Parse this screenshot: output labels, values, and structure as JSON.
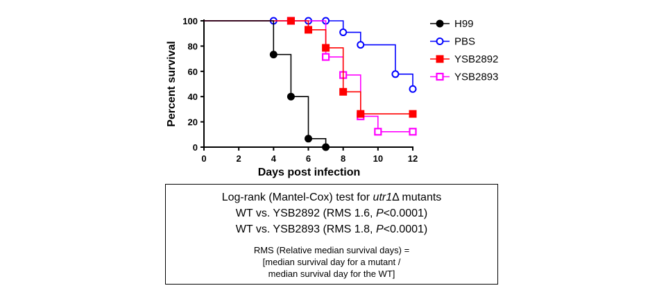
{
  "chart_data": {
    "type": "line",
    "subtype": "kaplan-meier survival (step)",
    "xlabel": "Days post infection",
    "ylabel": "Percent survival",
    "xlim": [
      0,
      12
    ],
    "ylim": [
      0,
      100
    ],
    "x_ticks": [
      "0",
      "2",
      "4",
      "6",
      "8",
      "10",
      "12"
    ],
    "y_ticks": [
      "0",
      "20",
      "40",
      "60",
      "80",
      "100"
    ],
    "grid": false,
    "legend_position": "right",
    "series": [
      {
        "name": "H99",
        "color": "#000000",
        "marker": "filled-circle",
        "points": [
          [
            0,
            100
          ],
          [
            4,
            100
          ],
          [
            4,
            73.3
          ],
          [
            5,
            73.3
          ],
          [
            5,
            40
          ],
          [
            6,
            40
          ],
          [
            6,
            6.7
          ],
          [
            7,
            6.7
          ],
          [
            7,
            0
          ]
        ],
        "markers": [
          [
            4,
            73.3
          ],
          [
            5,
            40
          ],
          [
            6,
            6.7
          ],
          [
            7,
            0
          ]
        ]
      },
      {
        "name": "PBS",
        "color": "#0000ff",
        "marker": "open-circle",
        "points": [
          [
            0,
            100
          ],
          [
            8,
            100
          ],
          [
            8,
            90.9
          ],
          [
            9,
            90.9
          ],
          [
            9,
            81
          ],
          [
            11,
            81
          ],
          [
            11,
            57.8
          ],
          [
            12,
            57.8
          ],
          [
            12,
            46
          ]
        ],
        "markers": [
          [
            4,
            100
          ],
          [
            6,
            100
          ],
          [
            7,
            100
          ],
          [
            8,
            90.9
          ],
          [
            9,
            81
          ],
          [
            11,
            57.8
          ],
          [
            12,
            46
          ]
        ]
      },
      {
        "name": "YSB2892",
        "color": "#ff0000",
        "marker": "filled-square",
        "points": [
          [
            0,
            100
          ],
          [
            6,
            100
          ],
          [
            6,
            92.9
          ],
          [
            7,
            92.9
          ],
          [
            7,
            78.6
          ],
          [
            8,
            78.6
          ],
          [
            8,
            43.8
          ],
          [
            9,
            43.8
          ],
          [
            9,
            26.3
          ],
          [
            12,
            26.3
          ]
        ],
        "markers": [
          [
            5,
            100
          ],
          [
            6,
            92.9
          ],
          [
            7,
            78.6
          ],
          [
            8,
            43.8
          ],
          [
            9,
            26.3
          ],
          [
            12,
            26.3
          ]
        ]
      },
      {
        "name": "YSB2893",
        "color": "#ff00ff",
        "marker": "open-square",
        "points": [
          [
            0,
            100
          ],
          [
            7,
            100
          ],
          [
            7,
            71.4
          ],
          [
            8,
            71.4
          ],
          [
            8,
            57.1
          ],
          [
            9,
            57.1
          ],
          [
            9,
            24.4
          ],
          [
            10,
            24.4
          ],
          [
            10,
            12.2
          ],
          [
            12,
            12.2
          ]
        ],
        "markers": [
          [
            5,
            100
          ],
          [
            7,
            71.4
          ],
          [
            8,
            57.1
          ],
          [
            9,
            24.4
          ],
          [
            10,
            12.2
          ],
          [
            12,
            12.2
          ]
        ]
      }
    ]
  },
  "stats_box": {
    "title_prefix": "Log-rank (Mantel-Cox) test for ",
    "title_gene": "utr1",
    "title_suffix": "Δ mutants",
    "lines": [
      {
        "prefix": "WT vs. YSB2892 (RMS 1.6, ",
        "p_label": "P",
        "suffix": "<0.0001)"
      },
      {
        "prefix": "WT vs. YSB2893 (RMS 1.8, ",
        "p_label": "P",
        "suffix": "<0.0001)"
      }
    ],
    "note_lines": [
      "RMS (Relative median survival days) =",
      "[median survival day for a mutant  /",
      "median survival day for the WT]"
    ]
  }
}
